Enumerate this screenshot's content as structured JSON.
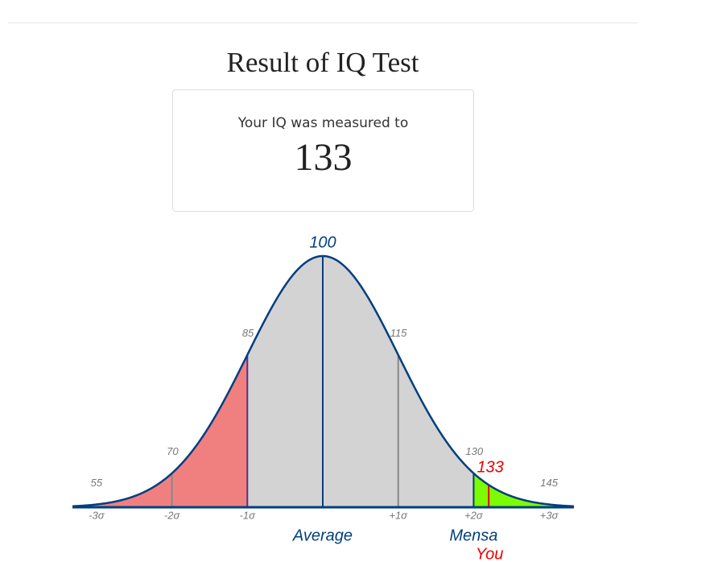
{
  "title": "Result of IQ Test",
  "result": {
    "label": "Your IQ was measured to",
    "value": 133
  },
  "distribution": {
    "points": [
      55,
      70,
      85,
      100,
      115,
      130,
      145
    ],
    "sigma_labels": [
      "-3σ",
      "-2σ",
      "-1σ",
      null,
      "+1σ",
      "+2σ",
      "+3σ"
    ],
    "average_label": "Average",
    "mensa_label": "Mensa",
    "you_label": "You"
  }
}
